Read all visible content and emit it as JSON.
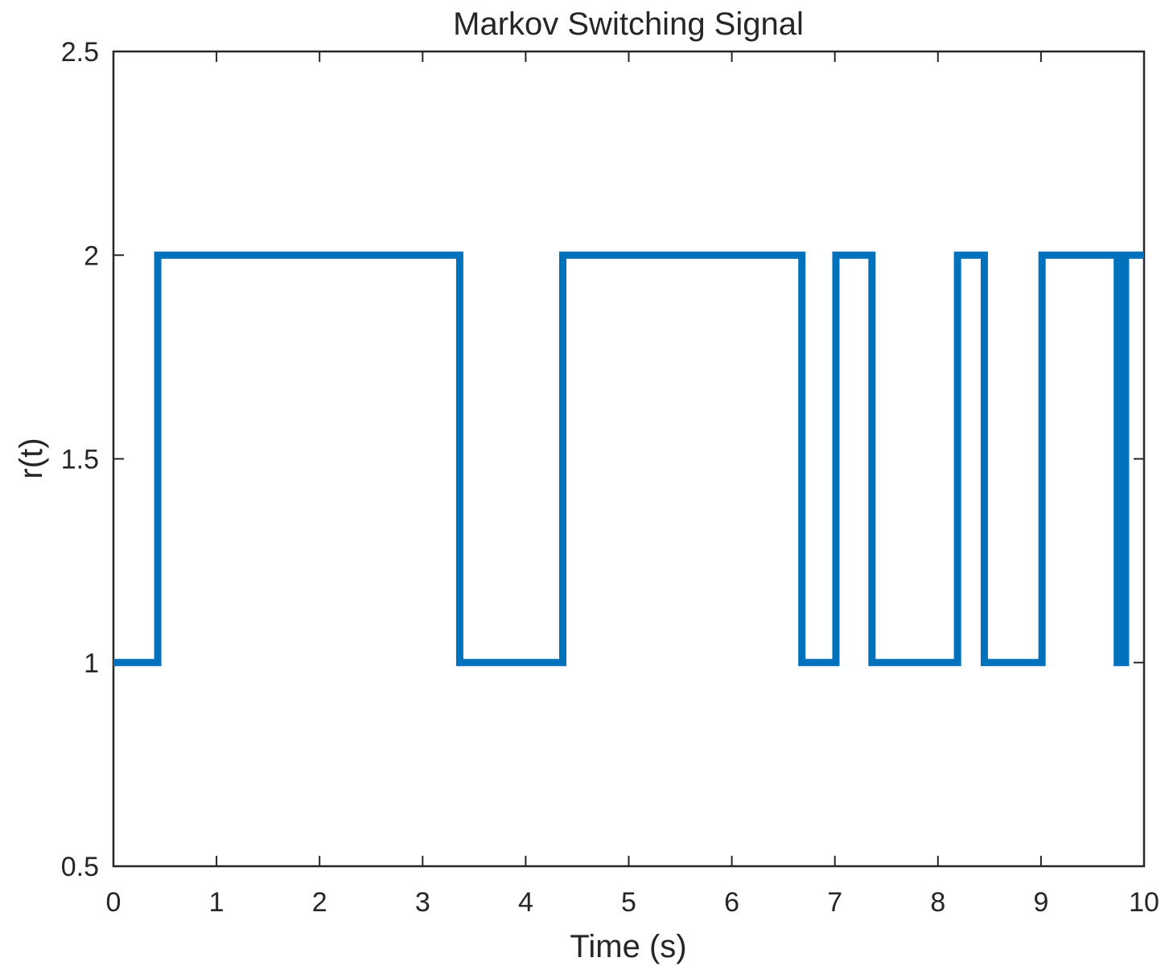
{
  "chart_data": {
    "type": "line",
    "style": "step",
    "title": "Markov Switching Signal",
    "xlabel": "Time (s)",
    "ylabel": "r(t)",
    "xlim": [
      0,
      10
    ],
    "ylim": [
      0.5,
      2.5
    ],
    "xticks": [
      "0",
      "1",
      "2",
      "3",
      "4",
      "5",
      "6",
      "7",
      "8",
      "9",
      "10"
    ],
    "yticks": [
      "0.5",
      "1",
      "1.5",
      "2",
      "2.5"
    ],
    "grid": false,
    "box": true,
    "series": [
      {
        "color": "#0072bd",
        "x": [
          0,
          0.43,
          0.43,
          3.36,
          3.36,
          4.36,
          4.36,
          6.68,
          6.68,
          7.01,
          7.01,
          7.36,
          7.36,
          8.19,
          8.19,
          8.45,
          8.45,
          9.01,
          9.01,
          9.74,
          9.74,
          9.76,
          9.76,
          9.79,
          9.79,
          9.82,
          9.82,
          10
        ],
        "y": [
          1,
          1,
          2,
          2,
          1,
          1,
          2,
          2,
          1,
          1,
          2,
          2,
          1,
          1,
          2,
          2,
          1,
          1,
          2,
          2,
          1,
          1,
          2,
          2,
          1,
          1,
          2,
          2
        ]
      }
    ]
  }
}
